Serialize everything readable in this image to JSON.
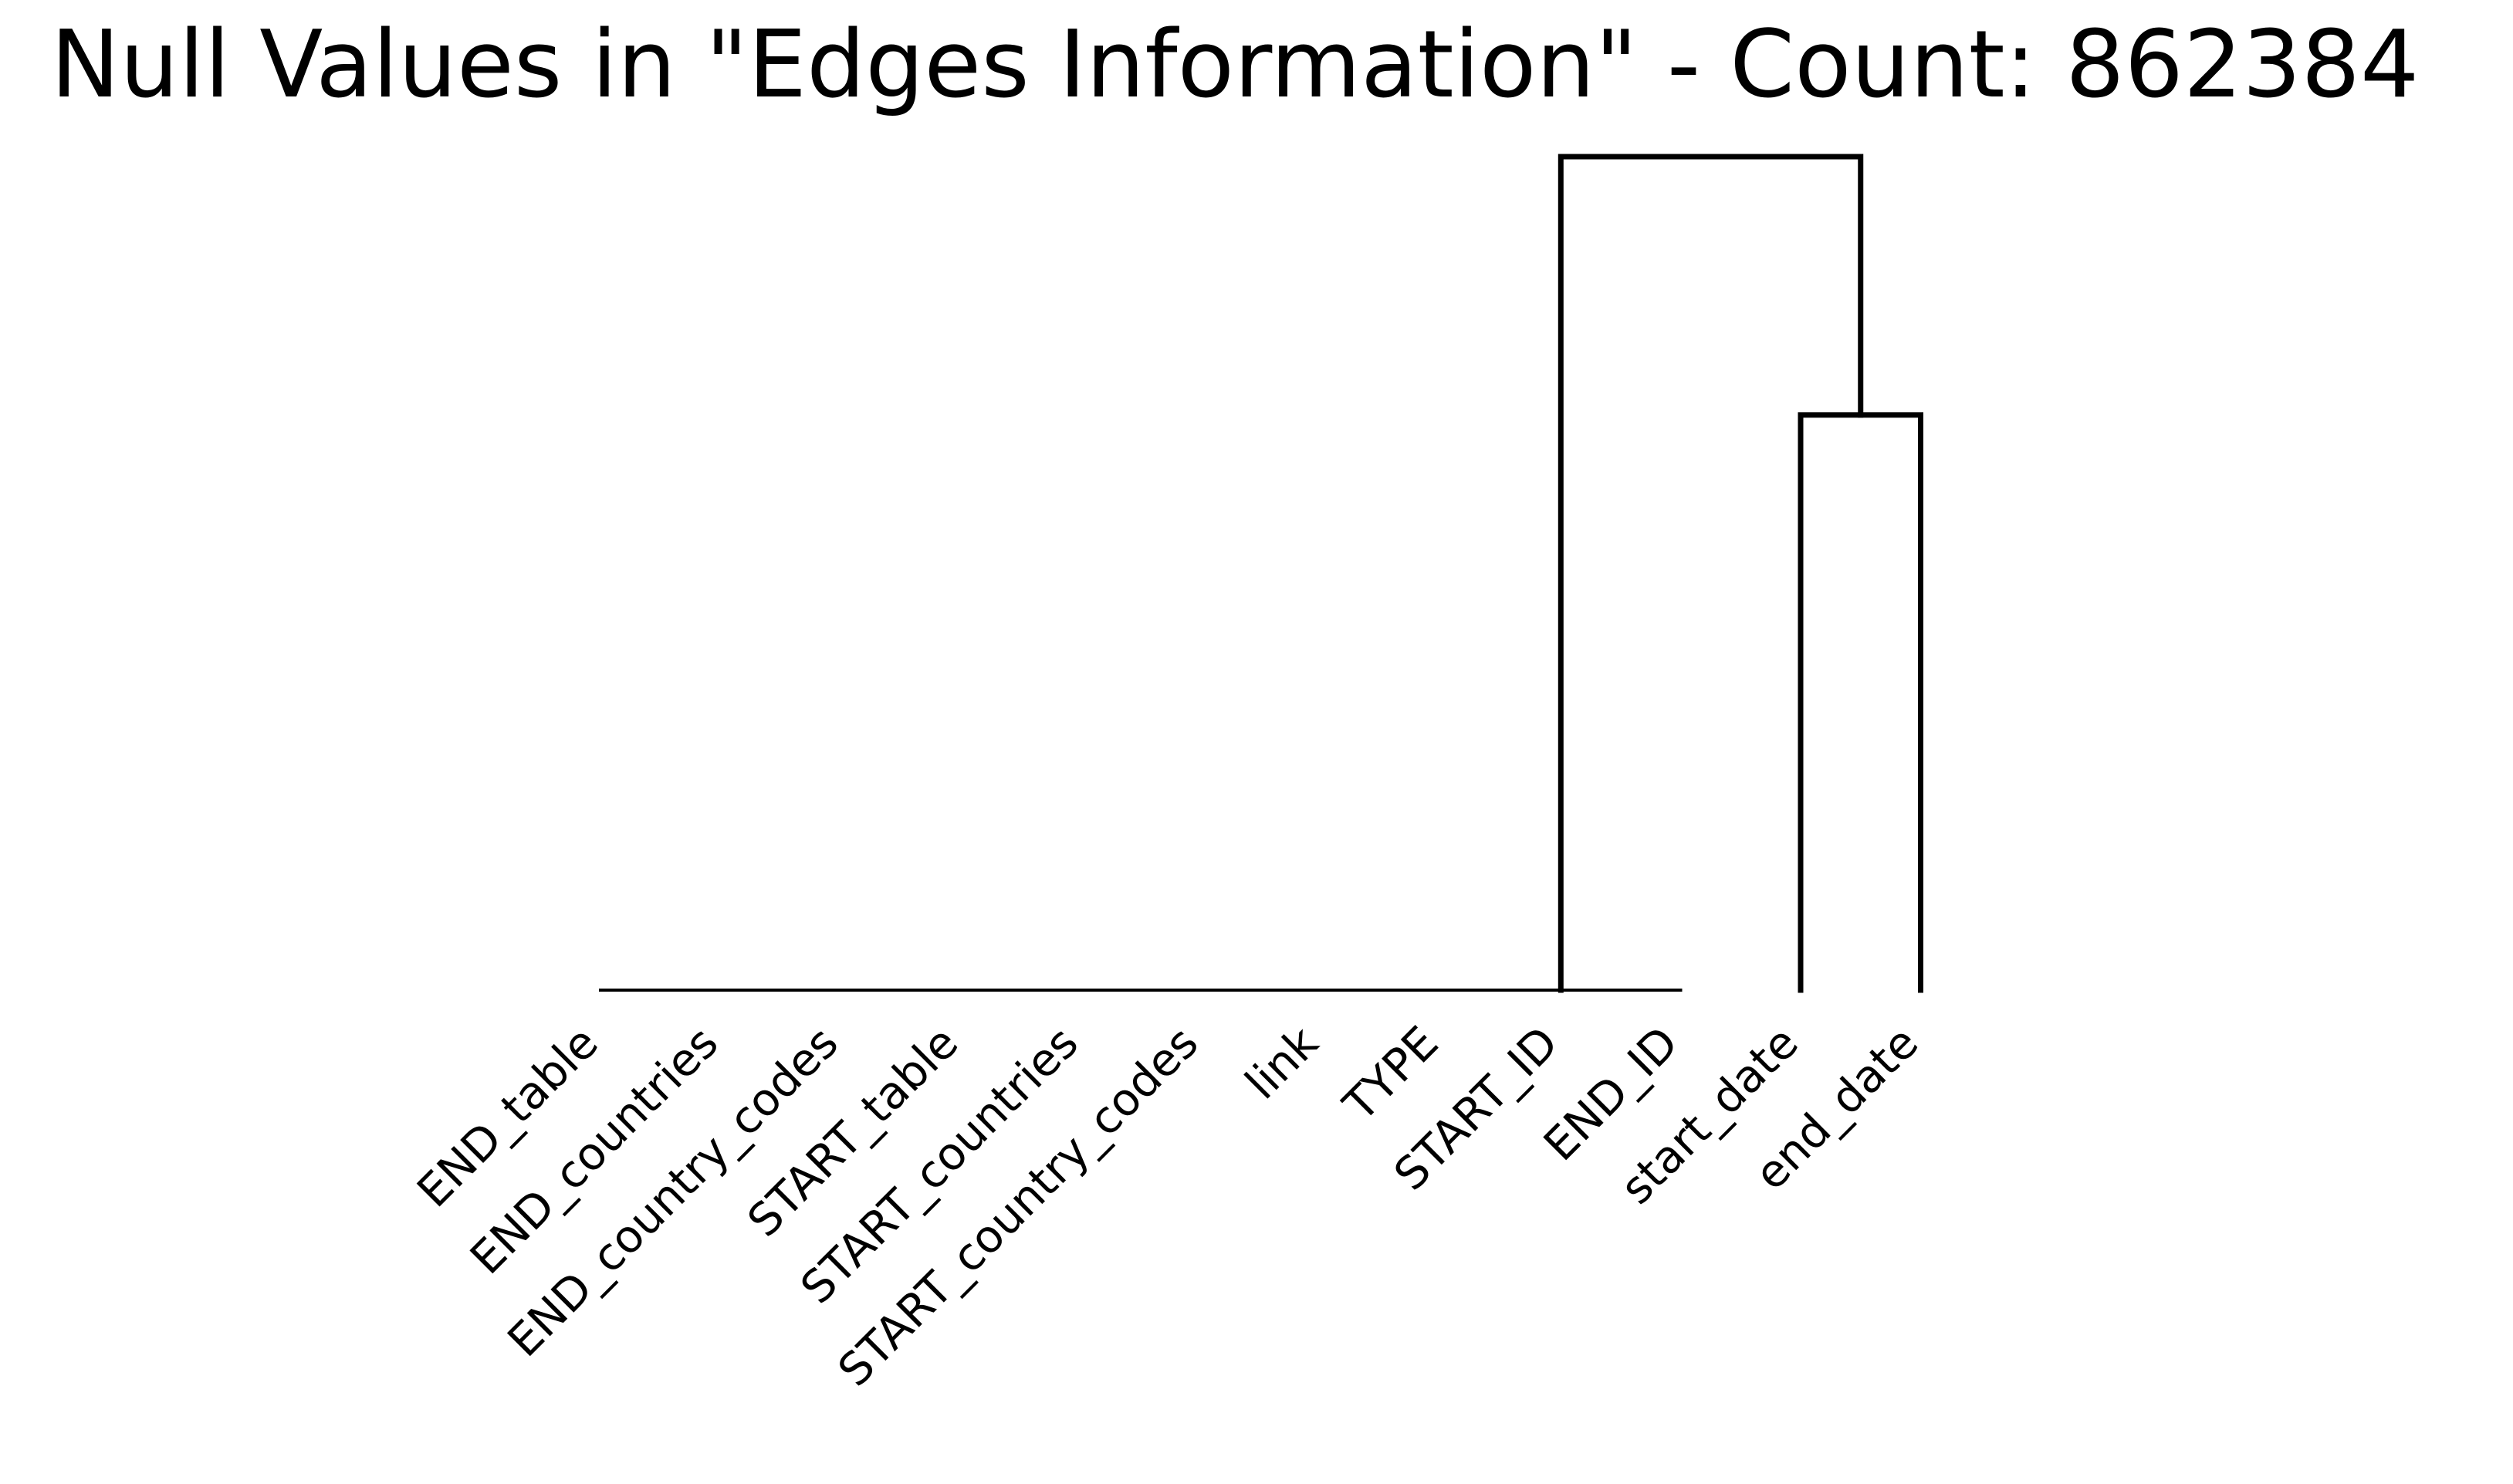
{
  "chart_data": {
    "type": "dendrogram",
    "title": "Null Values in \"Edges Information\" - Count: 862384",
    "xlabel": "",
    "ylabel": "",
    "grid": false,
    "legend": "none",
    "colors": {
      "line": "#000000",
      "background": "#ffffff"
    },
    "leaves": [
      "END_table",
      "END_countries",
      "END_country_codes",
      "START_table",
      "START_countries",
      "START_country_codes",
      "link",
      "TYPE",
      "START_ID",
      "END_ID",
      "start_date",
      "end_date"
    ],
    "linkage": [
      {
        "left": 0,
        "right": 1,
        "height": 0
      },
      {
        "left": 12,
        "right": 2,
        "height": 0
      },
      {
        "left": 13,
        "right": 3,
        "height": 0
      },
      {
        "left": 14,
        "right": 4,
        "height": 0
      },
      {
        "left": 15,
        "right": 5,
        "height": 0
      },
      {
        "left": 16,
        "right": 6,
        "height": 0
      },
      {
        "left": 17,
        "right": 7,
        "height": 0
      },
      {
        "left": 18,
        "right": 8,
        "height": 0
      },
      {
        "left": 19,
        "right": 9,
        "height": 0
      },
      {
        "left": 10,
        "right": 11,
        "height": 0.69
      },
      {
        "left": 20,
        "right": 21,
        "height": 1.0
      }
    ],
    "ylim": [
      0,
      1.0
    ]
  }
}
